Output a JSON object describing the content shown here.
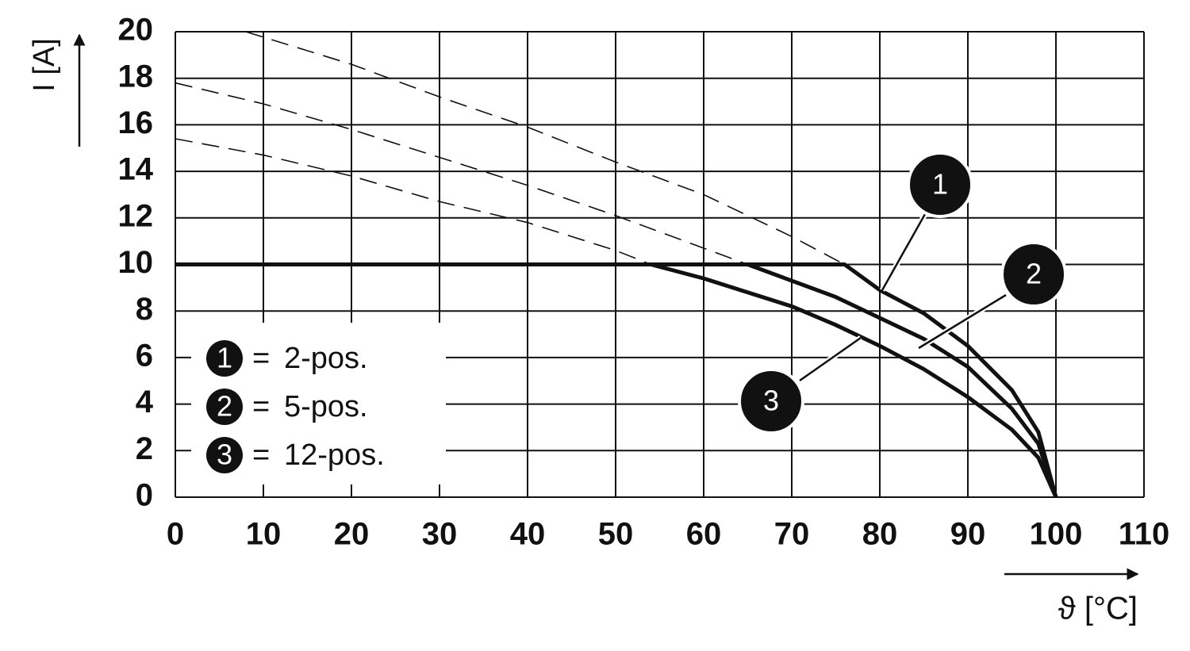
{
  "chart_data": {
    "type": "line",
    "y_label": "I [A]",
    "x_label": "ϑ [°C]",
    "xlim": [
      0,
      110
    ],
    "ylim": [
      0,
      20
    ],
    "xticks": [
      0,
      10,
      20,
      30,
      40,
      50,
      60,
      70,
      80,
      90,
      100,
      110
    ],
    "yticks": [
      0,
      2,
      4,
      6,
      8,
      10,
      12,
      14,
      16,
      18,
      20
    ],
    "grid": true,
    "legend_separator": "=",
    "series": [
      {
        "marker": "1",
        "name": "2-pos.",
        "color": "#111111",
        "x": [
          0,
          76,
          80,
          85,
          90,
          95,
          98,
          100
        ],
        "values": [
          10,
          10,
          8.9,
          7.9,
          6.5,
          4.6,
          2.8,
          0
        ]
      },
      {
        "marker": "2",
        "name": "5-pos.",
        "color": "#111111",
        "x": [
          0,
          65,
          70,
          75,
          80,
          85,
          90,
          95,
          98,
          100
        ],
        "values": [
          10,
          10,
          9.3,
          8.6,
          7.7,
          6.8,
          5.6,
          3.8,
          2.3,
          0
        ]
      },
      {
        "marker": "3",
        "name": "12-pos.",
        "color": "#111111",
        "x": [
          0,
          54,
          60,
          65,
          70,
          75,
          80,
          85,
          90,
          95,
          98,
          100
        ],
        "values": [
          10,
          10,
          9.4,
          8.8,
          8.2,
          7.4,
          6.5,
          5.5,
          4.3,
          2.9,
          1.7,
          0
        ]
      }
    ],
    "dashed_series": [
      {
        "x": [
          8,
          20,
          30,
          40,
          50,
          60,
          70,
          76
        ],
        "values": [
          20,
          18.6,
          17.2,
          15.9,
          14.4,
          13.0,
          11.2,
          10
        ]
      },
      {
        "x": [
          0,
          10,
          20,
          30,
          40,
          50,
          60,
          65
        ],
        "values": [
          17.8,
          16.9,
          15.8,
          14.6,
          13.4,
          12.1,
          10.7,
          10
        ]
      },
      {
        "x": [
          0,
          10,
          20,
          30,
          40,
          50,
          54
        ],
        "values": [
          15.4,
          14.7,
          13.8,
          12.7,
          11.8,
          10.6,
          10
        ]
      }
    ]
  }
}
